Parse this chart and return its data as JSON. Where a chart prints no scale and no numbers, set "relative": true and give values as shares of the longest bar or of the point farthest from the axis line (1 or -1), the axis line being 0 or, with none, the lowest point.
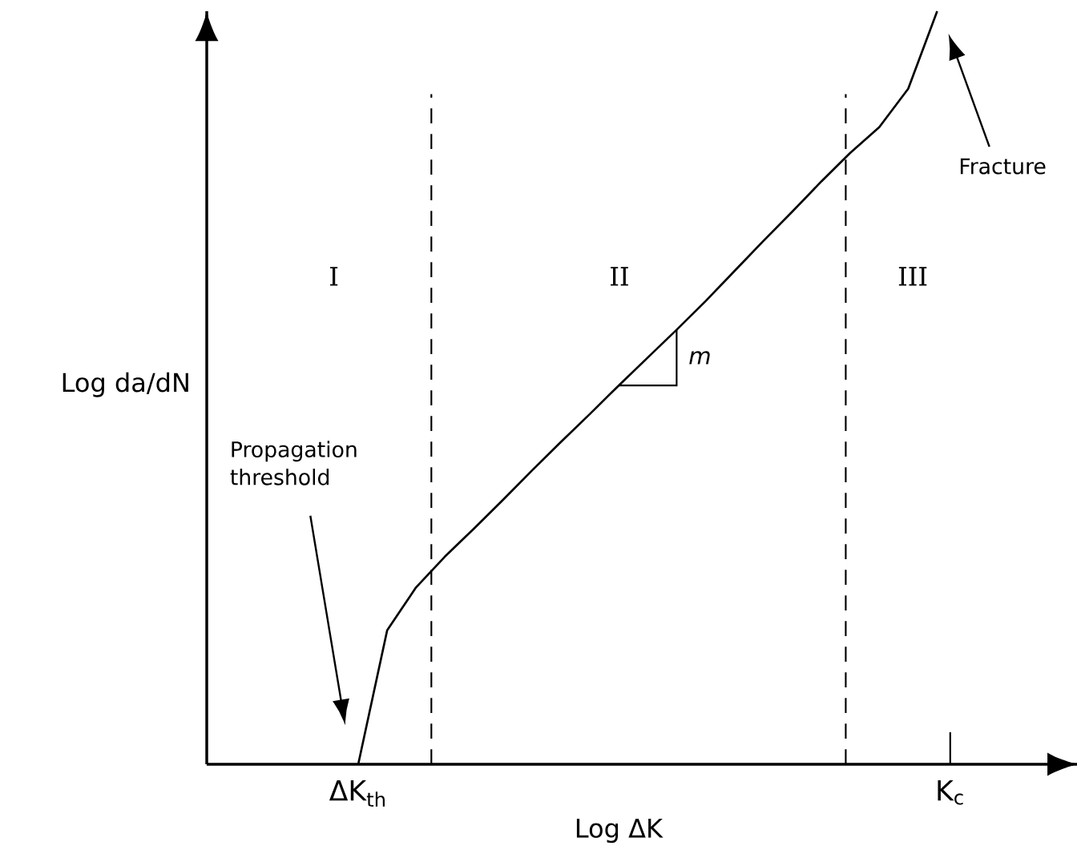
{
  "chart_data": {
    "type": "line",
    "relative": true,
    "xlabel": "Log ΔK",
    "categories": [
      null,
      null,
      null,
      null,
      null,
      null,
      null,
      null,
      null,
      null,
      null,
      null,
      null,
      null,
      null,
      null,
      null,
      null,
      null,
      null,
      null
    ],
    "values": [
      0,
      0.178,
      0.235,
      0.276,
      0.313,
      0.351,
      0.39,
      0.428,
      0.465,
      0.503,
      0.54,
      0.577,
      0.615,
      0.655,
      0.695,
      0.734,
      0.774,
      0.812,
      0.846,
      0.897,
      1
    ],
    "color": "#000000",
    "marker": "none",
    "line_style": "solid",
    "annotations": [
      "I",
      "II",
      "III",
      "m",
      "Propagation threshold",
      "Fracture",
      "ΔK$_{th}$",
      "K$_{c}$",
      "Log da/dN"
    ]
  }
}
